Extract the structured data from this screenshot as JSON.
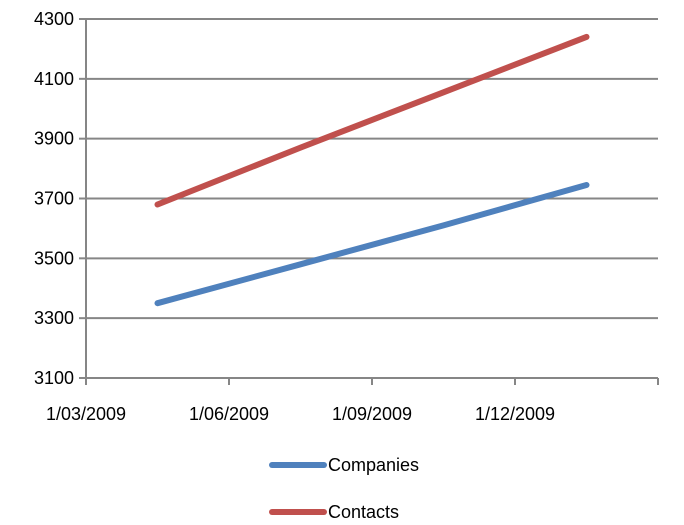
{
  "chart_data": {
    "type": "line",
    "x": [
      "1/03/2009",
      "1/06/2009",
      "1/09/2009",
      "1/12/2009"
    ],
    "x_ticks": [
      "1/03/2009",
      "1/06/2009",
      "1/09/2009",
      "1/12/2009"
    ],
    "ylim": [
      3100,
      4300
    ],
    "y_ticks": [
      3100,
      3300,
      3500,
      3700,
      3900,
      4100,
      4300
    ],
    "grid": true,
    "legend_placement": "bottom",
    "series": [
      {
        "name": "Companies",
        "color": "#4F81BD",
        "values": [
          3350,
          3480,
          3610,
          3745
        ]
      },
      {
        "name": "Contacts",
        "color": "#C0504D",
        "values": [
          3680,
          3870,
          4055,
          4240
        ]
      }
    ]
  }
}
